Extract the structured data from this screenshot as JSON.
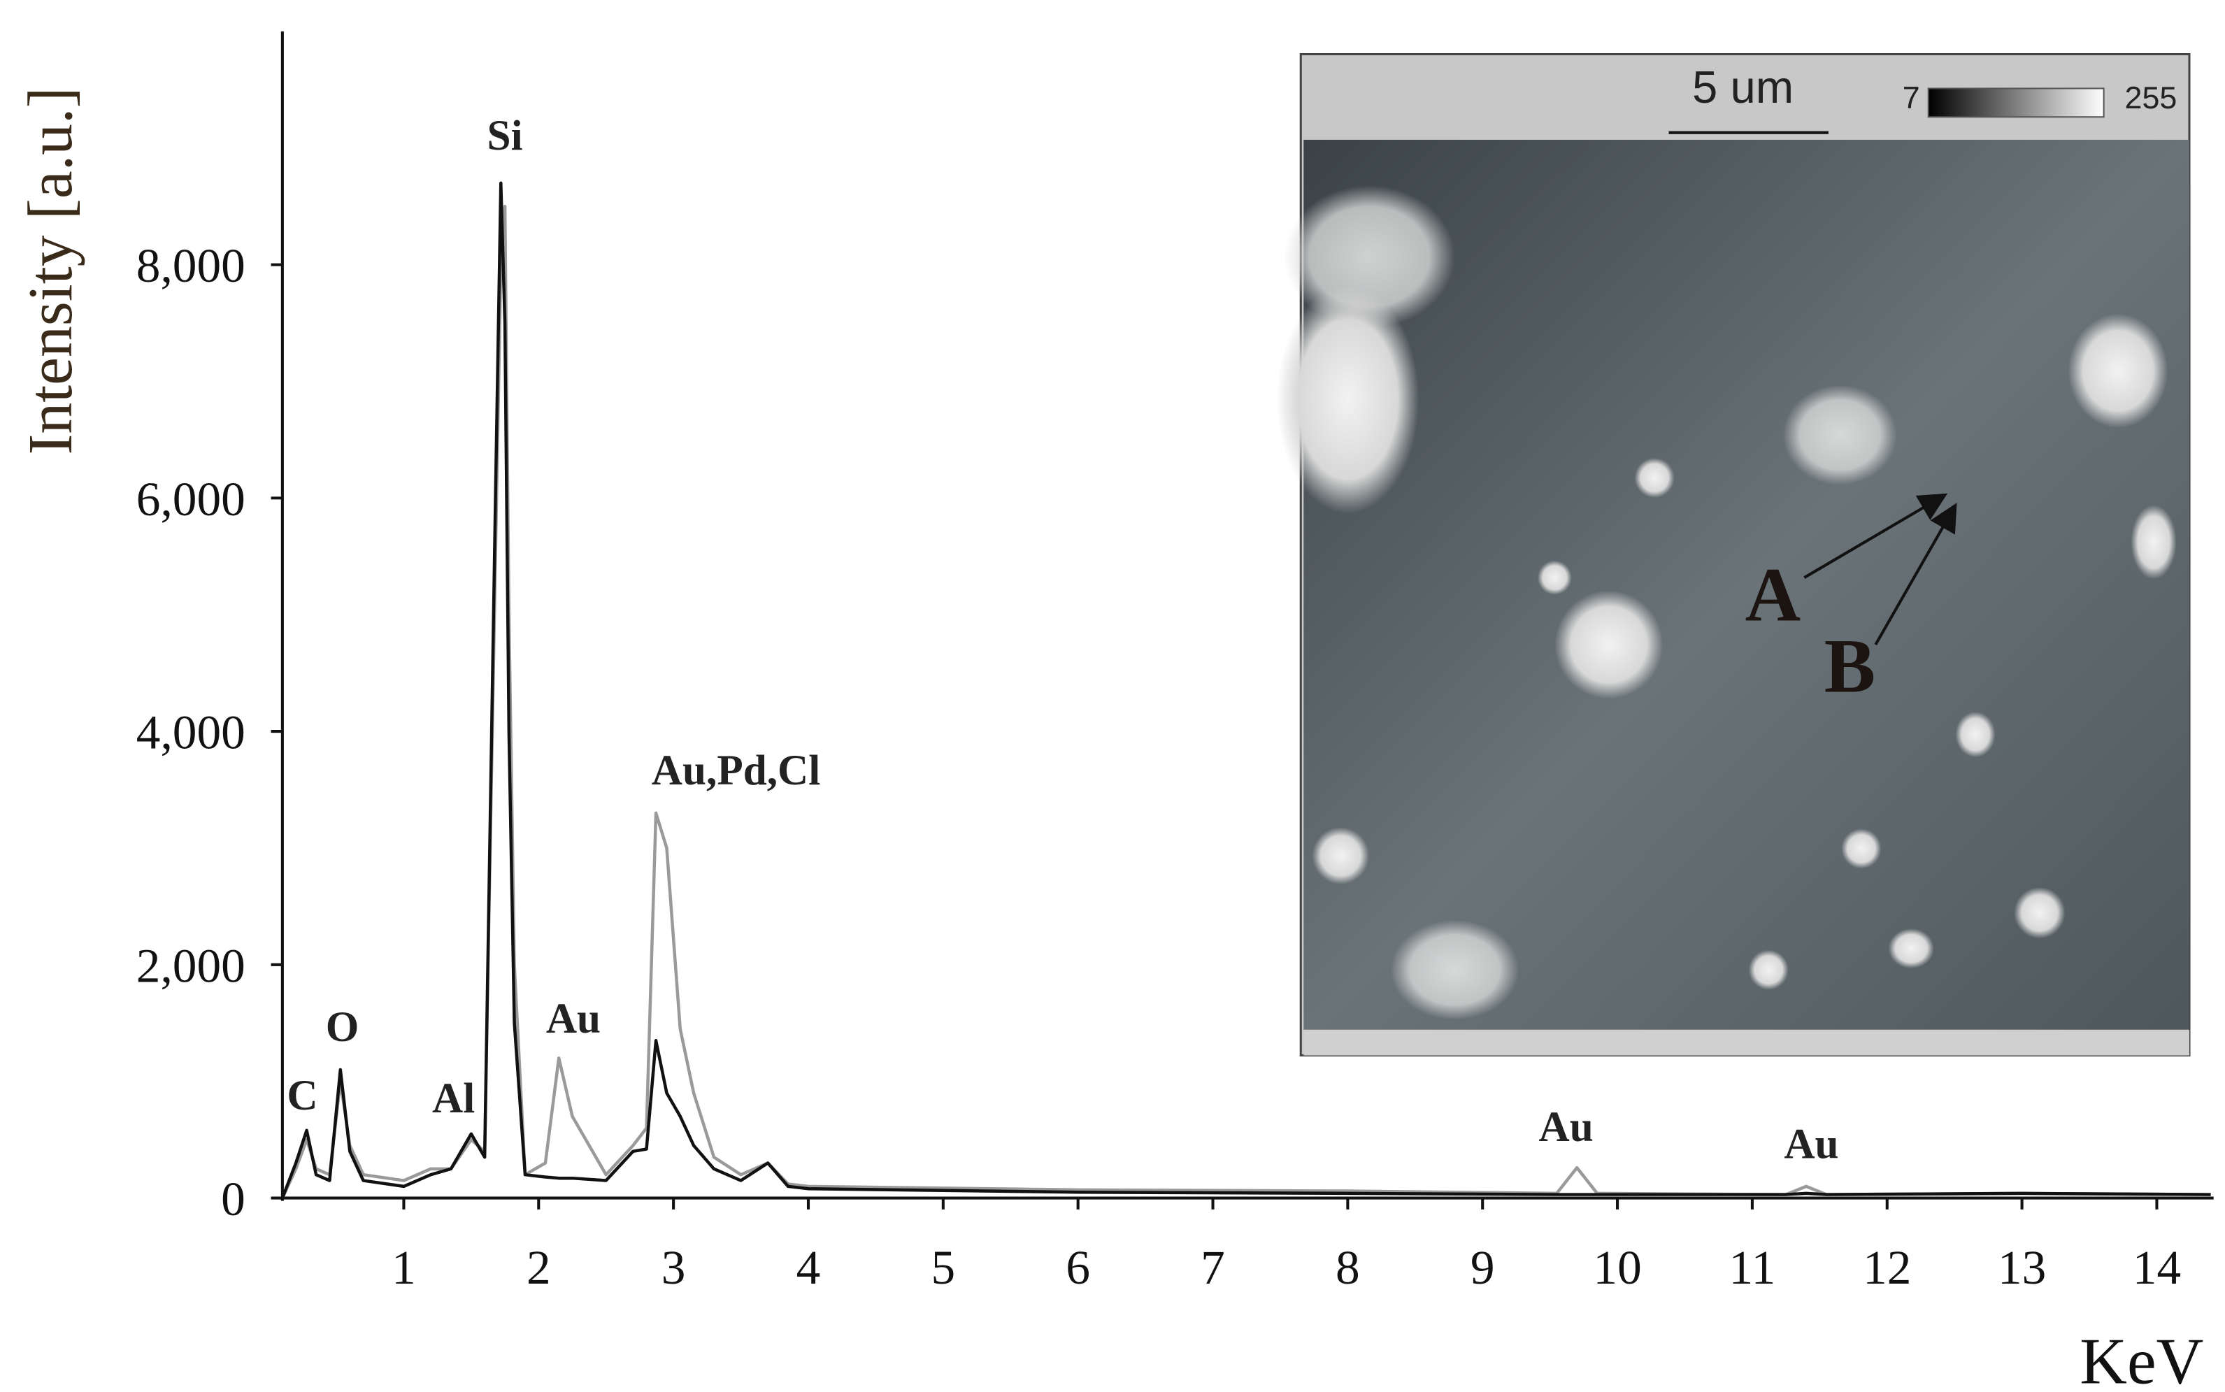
{
  "chart_data": {
    "type": "line",
    "x_label": "KeV",
    "y_label": "Intensity [a.u.]",
    "x": [
      0.1,
      0.2,
      0.28,
      0.35,
      0.45,
      0.53,
      0.6,
      0.7,
      1.0,
      1.2,
      1.35,
      1.5,
      1.6,
      1.68,
      1.72,
      1.75,
      1.78,
      1.82,
      1.9,
      2.05,
      2.15,
      2.25,
      2.5,
      2.7,
      2.8,
      2.87,
      2.95,
      3.05,
      3.15,
      3.3,
      3.5,
      3.7,
      3.85,
      4.0,
      6,
      8,
      9.55,
      9.7,
      9.85,
      11.25,
      11.4,
      11.55,
      13,
      14.4
    ],
    "series": [
      {
        "color": "#9a9a9a",
        "values": [
          0,
          250,
          500,
          250,
          200,
          1000,
          450,
          200,
          150,
          250,
          250,
          500,
          400,
          5500,
          8000,
          8500,
          5000,
          2000,
          200,
          300,
          1200,
          700,
          200,
          450,
          600,
          3300,
          3000,
          1450,
          900,
          350,
          200,
          300,
          120,
          100,
          70,
          60,
          40,
          260,
          40,
          30,
          100,
          30,
          40,
          30
        ]
      },
      {
        "color": "#111111",
        "values": [
          0,
          300,
          580,
          200,
          150,
          1100,
          400,
          150,
          100,
          200,
          250,
          550,
          350,
          6000,
          8700,
          7500,
          4000,
          1500,
          200,
          180,
          170,
          170,
          150,
          400,
          420,
          1350,
          900,
          700,
          450,
          250,
          150,
          300,
          100,
          80,
          50,
          40,
          30,
          30,
          30,
          30,
          40,
          30,
          40,
          30
        ]
      }
    ],
    "xlim": [
      0.1,
      14.4
    ],
    "xticks": [
      1,
      2,
      3,
      4,
      5,
      6,
      7,
      8,
      9,
      10,
      11,
      12,
      13,
      14
    ],
    "ylim": [
      0,
      10000
    ],
    "yticks": [
      0,
      {
        "value": 2000,
        "label": "2,000"
      },
      {
        "value": 4000,
        "label": "4,000"
      },
      {
        "value": 6000,
        "label": "6,000"
      },
      {
        "value": 8000,
        "label": "8,000"
      }
    ],
    "annotations": [
      "C",
      "O",
      "Al",
      "Si",
      "Au",
      "Au,Pd,Cl",
      "Au",
      "Au"
    ],
    "inset_labels": {
      "scale": "5 um",
      "min": "7",
      "max": "255",
      "a": "A",
      "b": "B"
    }
  }
}
